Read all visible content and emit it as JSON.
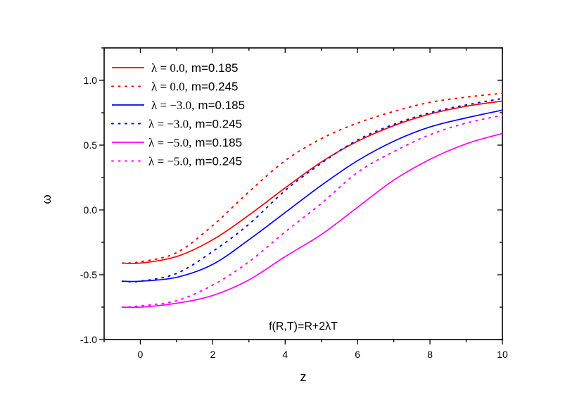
{
  "chart_data": {
    "type": "line",
    "xlabel": "z",
    "ylabel": "ω",
    "xlim": [
      -1,
      10
    ],
    "ylim": [
      -1.0,
      1.25
    ],
    "xticks": [
      "0",
      "2",
      "4",
      "6",
      "8",
      "10"
    ],
    "yticks": [
      "-1.0",
      "-0.5",
      "0.0",
      "0.5",
      "1.0"
    ],
    "grid": false,
    "legend_position": "top-left",
    "annotation": "f(R,T)=R+2λT",
    "x": [
      -0.5,
      0,
      1,
      2,
      3,
      4,
      5,
      6,
      7,
      8,
      9,
      10
    ],
    "series": [
      {
        "name": "λ = 0.0, m=0.185",
        "lambda_text": "λ = 0.0,",
        "m_text": "m=0.185",
        "color": "#ff0000",
        "style": "solid",
        "values": [
          -0.41,
          -0.41,
          -0.36,
          -0.23,
          -0.04,
          0.17,
          0.37,
          0.53,
          0.65,
          0.74,
          0.8,
          0.84
        ]
      },
      {
        "name": "λ = 0.0, m=0.245",
        "lambda_text": "λ = 0.0,",
        "m_text": "m=0.245",
        "color": "#ff0000",
        "style": "dotted",
        "values": [
          -0.41,
          -0.4,
          -0.33,
          -0.12,
          0.14,
          0.38,
          0.55,
          0.67,
          0.76,
          0.83,
          0.87,
          0.9
        ]
      },
      {
        "name": "λ = −3.0, m=0.185",
        "lambda_text": "λ = −3.0,",
        "m_text": "m=0.185",
        "color": "#0000ff",
        "style": "solid",
        "values": [
          -0.55,
          -0.55,
          -0.52,
          -0.42,
          -0.23,
          -0.02,
          0.19,
          0.38,
          0.53,
          0.64,
          0.71,
          0.77
        ]
      },
      {
        "name": "λ = −3.0, m=0.245",
        "lambda_text": "λ = −3.0,",
        "m_text": "m=0.245",
        "color": "#0000ff",
        "style": "dotted",
        "values": [
          -0.55,
          -0.55,
          -0.49,
          -0.32,
          -0.11,
          0.15,
          0.36,
          0.54,
          0.66,
          0.75,
          0.81,
          0.86
        ]
      },
      {
        "name": "λ = −5.0, m=0.185",
        "lambda_text": "λ = −5.0,",
        "m_text": "m=0.185",
        "color": "#ff00ff",
        "style": "solid",
        "values": [
          -0.75,
          -0.75,
          -0.72,
          -0.66,
          -0.54,
          -0.36,
          -0.19,
          0.02,
          0.23,
          0.39,
          0.51,
          0.59
        ]
      },
      {
        "name": "λ = −5.0, m=0.245",
        "lambda_text": "λ = −5.0,",
        "m_text": "m=0.245",
        "color": "#ff00ff",
        "style": "dotted",
        "values": [
          -0.75,
          -0.74,
          -0.7,
          -0.58,
          -0.4,
          -0.17,
          0.05,
          0.29,
          0.45,
          0.58,
          0.67,
          0.73
        ]
      }
    ]
  }
}
